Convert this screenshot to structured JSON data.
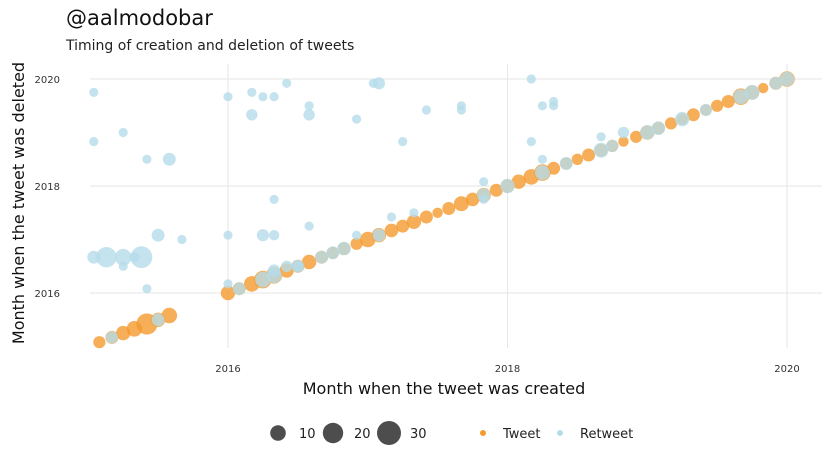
{
  "header": {
    "title": "@aalmodobar",
    "subtitle": "Timing of creation and deletion of tweets"
  },
  "chart_data": {
    "type": "scatter",
    "title": "@aalmodobar",
    "subtitle": "Timing of creation and deletion of tweets",
    "xlabel": "Month when the tweet was created",
    "ylabel": "Month when the tweet was deleted",
    "xlim": [
      2015.0,
      2020.6
    ],
    "ylim": [
      2015.0,
      2020.3
    ],
    "x_ticks": [
      2016,
      2018,
      2020
    ],
    "y_ticks": [
      2016,
      2018,
      2020
    ],
    "x_tick_labels": [
      "2016",
      "2018",
      "2020"
    ],
    "y_tick_labels": [
      "2016",
      "2018",
      "2020"
    ],
    "grid": true,
    "legend_position": "bottom",
    "size_legend": {
      "values": [
        10,
        20,
        30
      ],
      "labels": [
        "10",
        "20",
        "30"
      ]
    },
    "colors": {
      "Tweet": "#F59A2E",
      "Retweet": "#B5DCEA"
    },
    "series": [
      {
        "name": "Tweet",
        "points": [
          [
            2015.08,
            2015.08,
            5
          ],
          [
            2015.17,
            2015.17,
            6
          ],
          [
            2015.25,
            2015.25,
            8
          ],
          [
            2015.33,
            2015.33,
            10
          ],
          [
            2015.42,
            2015.42,
            22
          ],
          [
            2015.5,
            2015.5,
            8
          ],
          [
            2015.58,
            2015.58,
            10
          ],
          [
            2016.0,
            2016.0,
            8
          ],
          [
            2016.08,
            2016.08,
            6
          ],
          [
            2016.17,
            2016.17,
            10
          ],
          [
            2016.25,
            2016.25,
            14
          ],
          [
            2016.33,
            2016.33,
            12
          ],
          [
            2016.42,
            2016.42,
            8
          ],
          [
            2016.5,
            2016.5,
            6
          ],
          [
            2016.58,
            2016.58,
            8
          ],
          [
            2016.67,
            2016.67,
            6
          ],
          [
            2016.75,
            2016.75,
            5
          ],
          [
            2016.83,
            2016.83,
            6
          ],
          [
            2016.92,
            2016.92,
            5
          ],
          [
            2017.0,
            2017.0,
            10
          ],
          [
            2017.08,
            2017.08,
            8
          ],
          [
            2017.17,
            2017.17,
            7
          ],
          [
            2017.25,
            2017.25,
            6
          ],
          [
            2017.33,
            2017.33,
            8
          ],
          [
            2017.42,
            2017.42,
            6
          ],
          [
            2017.5,
            2017.5,
            3
          ],
          [
            2017.58,
            2017.58,
            6
          ],
          [
            2017.67,
            2017.67,
            9
          ],
          [
            2017.75,
            2017.75,
            7
          ],
          [
            2017.83,
            2017.83,
            8
          ],
          [
            2017.92,
            2017.92,
            6
          ],
          [
            2018.0,
            2018.0,
            7
          ],
          [
            2018.08,
            2018.08,
            8
          ],
          [
            2018.17,
            2018.17,
            10
          ],
          [
            2018.25,
            2018.25,
            12
          ],
          [
            2018.33,
            2018.33,
            6
          ],
          [
            2018.42,
            2018.42,
            5
          ],
          [
            2018.5,
            2018.5,
            4
          ],
          [
            2018.58,
            2018.58,
            6
          ],
          [
            2018.67,
            2018.67,
            6
          ],
          [
            2018.75,
            2018.75,
            5
          ],
          [
            2018.83,
            2018.83,
            3
          ],
          [
            2018.92,
            2018.92,
            5
          ],
          [
            2019.0,
            2019.0,
            8
          ],
          [
            2019.08,
            2019.08,
            6
          ],
          [
            2019.17,
            2019.17,
            5
          ],
          [
            2019.25,
            2019.25,
            4
          ],
          [
            2019.33,
            2019.33,
            6
          ],
          [
            2019.42,
            2019.42,
            4
          ],
          [
            2019.5,
            2019.5,
            5
          ],
          [
            2019.58,
            2019.58,
            6
          ],
          [
            2019.67,
            2019.67,
            12
          ],
          [
            2019.75,
            2019.75,
            8
          ],
          [
            2019.83,
            2019.83,
            3
          ],
          [
            2019.92,
            2019.92,
            6
          ],
          [
            2020.0,
            2020.0,
            10
          ]
        ]
      },
      {
        "name": "Retweet",
        "points": [
          [
            2015.04,
            2019.75,
            2
          ],
          [
            2015.04,
            2018.83,
            2
          ],
          [
            2015.25,
            2019.0,
            2
          ],
          [
            2015.42,
            2018.5,
            2
          ],
          [
            2015.58,
            2018.5,
            6
          ],
          [
            2015.5,
            2017.08,
            6
          ],
          [
            2015.67,
            2017.0,
            2
          ],
          [
            2015.42,
            2016.08,
            2
          ],
          [
            2015.04,
            2016.67,
            6
          ],
          [
            2015.13,
            2016.67,
            20
          ],
          [
            2015.25,
            2016.67,
            12
          ],
          [
            2015.25,
            2016.5,
            2
          ],
          [
            2015.33,
            2016.67,
            3
          ],
          [
            2015.38,
            2016.67,
            24
          ],
          [
            2016.0,
            2019.67,
            2
          ],
          [
            2016.17,
            2019.75,
            2
          ],
          [
            2016.25,
            2019.67,
            2
          ],
          [
            2016.33,
            2019.67,
            2
          ],
          [
            2016.42,
            2019.92,
            2
          ],
          [
            2016.17,
            2019.33,
            4
          ],
          [
            2016.58,
            2019.5,
            2
          ],
          [
            2016.58,
            2019.33,
            4
          ],
          [
            2016.92,
            2019.25,
            2
          ],
          [
            2017.04,
            2019.92,
            2
          ],
          [
            2017.08,
            2019.92,
            5
          ],
          [
            2017.25,
            2018.83,
            2
          ],
          [
            2017.42,
            2019.42,
            2
          ],
          [
            2017.67,
            2019.5,
            2
          ],
          [
            2017.67,
            2019.42,
            2
          ],
          [
            2018.17,
            2020.0,
            2
          ],
          [
            2018.25,
            2019.5,
            2
          ],
          [
            2018.33,
            2019.58,
            2
          ],
          [
            2018.33,
            2019.5,
            2
          ],
          [
            2018.17,
            2018.83,
            2
          ],
          [
            2018.25,
            2018.5,
            2
          ],
          [
            2016.33,
            2017.75,
            2
          ],
          [
            2017.83,
            2018.08,
            2
          ],
          [
            2017.83,
            2017.75,
            2
          ],
          [
            2017.33,
            2017.5,
            2
          ],
          [
            2017.17,
            2017.42,
            2
          ],
          [
            2016.58,
            2017.25,
            2
          ],
          [
            2016.25,
            2017.08,
            5
          ],
          [
            2016.33,
            2017.08,
            3
          ],
          [
            2016.92,
            2017.08,
            2
          ],
          [
            2016.0,
            2017.08,
            2
          ],
          [
            2016.0,
            2016.17,
            2
          ],
          [
            2016.33,
            2016.42,
            5
          ],
          [
            2016.42,
            2016.5,
            4
          ],
          [
            2016.5,
            2016.5,
            3
          ],
          [
            2018.67,
            2018.92,
            2
          ],
          [
            2018.83,
            2019.0,
            4
          ],
          [
            2015.17,
            2015.17,
            5
          ],
          [
            2015.5,
            2015.5,
            6
          ],
          [
            2016.08,
            2016.08,
            6
          ],
          [
            2016.25,
            2016.25,
            10
          ],
          [
            2016.33,
            2016.33,
            10
          ],
          [
            2016.5,
            2016.5,
            6
          ],
          [
            2016.67,
            2016.67,
            6
          ],
          [
            2016.75,
            2016.75,
            6
          ],
          [
            2016.83,
            2016.83,
            7
          ],
          [
            2017.08,
            2017.08,
            6
          ],
          [
            2017.83,
            2017.83,
            7
          ],
          [
            2018.0,
            2018.0,
            8
          ],
          [
            2018.25,
            2018.25,
            9
          ],
          [
            2018.42,
            2018.42,
            6
          ],
          [
            2018.67,
            2018.67,
            9
          ],
          [
            2018.75,
            2018.75,
            5
          ],
          [
            2019.0,
            2019.0,
            8
          ],
          [
            2019.08,
            2019.08,
            7
          ],
          [
            2019.25,
            2019.25,
            8
          ],
          [
            2019.42,
            2019.42,
            5
          ],
          [
            2019.67,
            2019.67,
            9
          ],
          [
            2019.75,
            2019.75,
            9
          ],
          [
            2019.92,
            2019.92,
            6
          ],
          [
            2020.0,
            2020.0,
            8
          ]
        ]
      }
    ]
  },
  "legend": {
    "size_items": [
      "10",
      "20",
      "30"
    ],
    "color_items": [
      {
        "label": "Tweet",
        "color": "#F59A2E"
      },
      {
        "label": "Retweet",
        "color": "#B5DCEA"
      }
    ]
  }
}
